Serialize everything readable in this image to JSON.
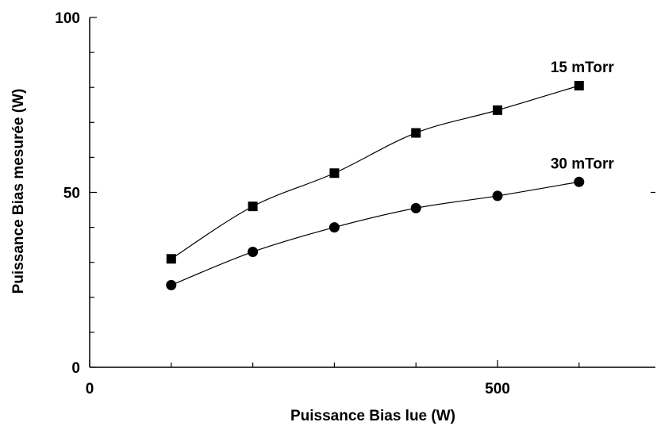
{
  "chart_data": {
    "type": "line",
    "title": "",
    "xlabel": "Puissance Bias lue (W)",
    "ylabel": "Puissance Bias mesurée (W)",
    "xlim": [
      0,
      700
    ],
    "ylim": [
      0,
      100
    ],
    "x_ticks": [
      {
        "value": 0,
        "label": "0"
      },
      {
        "value": 500,
        "label": "500"
      }
    ],
    "y_ticks": [
      {
        "value": 0,
        "label": "0"
      },
      {
        "value": 50,
        "label": "50"
      },
      {
        "value": 100,
        "label": "100"
      }
    ],
    "x_minor_ticks": [
      100,
      200,
      300,
      400,
      600
    ],
    "y_minor_ticks": [
      10,
      20,
      30,
      40,
      60,
      70,
      80,
      90
    ],
    "x": [
      100,
      200,
      300,
      400,
      500,
      600
    ],
    "series": [
      {
        "name": "15 mTorr",
        "marker": "square",
        "values": [
          31,
          46,
          55.5,
          67,
          73.5,
          80.5
        ]
      },
      {
        "name": "30 mTorr",
        "marker": "circle",
        "values": [
          23.5,
          33,
          40,
          45.5,
          49,
          53
        ]
      }
    ],
    "grid": false,
    "legend": "labels placed next to the last point of each curve",
    "colors": {
      "line": "#000000",
      "marker": "#000000"
    }
  }
}
